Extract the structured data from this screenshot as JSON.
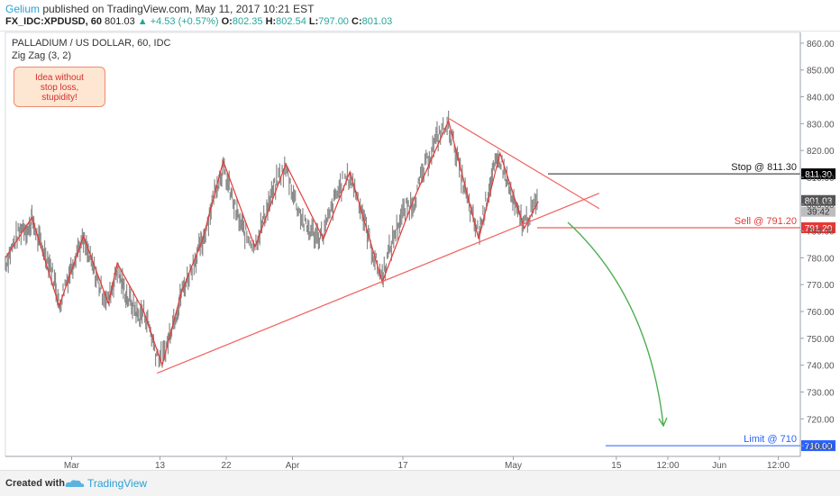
{
  "header": {
    "user": "Gelium",
    "published": "published on TradingView.com, May 11, 2017 10:21 EST",
    "symbol": "FX_IDC:XPDUSD, 60",
    "last": "801.03",
    "change": "▲ +4.53 (+0.57%)",
    "open_label": "O:",
    "open": "802.35",
    "high_label": "H:",
    "high": "802.54",
    "low_label": "L:",
    "low": "797.00",
    "close_label": "C:",
    "close": "801.03"
  },
  "legend": {
    "title": "PALLADIUM / US DOLLAR, 60, IDC",
    "indicator": "Zig Zag (3, 2)"
  },
  "note": {
    "text_line1": "Idea without",
    "text_line2": "stop loss,",
    "text_line3": "stupidity!"
  },
  "footer": {
    "created": "Created with",
    "brand": "TradingView"
  },
  "colors": {
    "zigzag": "#e53935",
    "trend": "#f06464",
    "arrow": "#4caf50",
    "limit": "#2962ff",
    "price": "#333333",
    "candle": "#888888"
  },
  "chart_data": {
    "type": "line",
    "symbol": "PALLADIUM / US DOLLAR",
    "y_ticks": [
      "860.00",
      "850.00",
      "840.00",
      "830.00",
      "820.00",
      "810.00",
      "800.00",
      "790.00",
      "780.00",
      "770.00",
      "760.00",
      "750.00",
      "740.00",
      "730.00",
      "720.00",
      "710.00"
    ],
    "ylim": [
      706,
      864
    ],
    "x_ticks": [
      {
        "label": "Mar",
        "x": 9
      },
      {
        "label": "13",
        "x": 21
      },
      {
        "label": "22",
        "x": 30
      },
      {
        "label": "Apr",
        "x": 39
      },
      {
        "label": "17",
        "x": 54
      },
      {
        "label": "May",
        "x": 69
      },
      {
        "label": "15",
        "x": 83
      },
      {
        "label": "12:00",
        "x": 90
      },
      {
        "label": "Jun",
        "x": 97
      },
      {
        "label": "12:00",
        "x": 105
      }
    ],
    "xlim": [
      0,
      108
    ],
    "zigzag": [
      {
        "x": 0,
        "y": 780
      },
      {
        "x": 3.6,
        "y": 795
      },
      {
        "x": 7.3,
        "y": 762
      },
      {
        "x": 10.6,
        "y": 788
      },
      {
        "x": 14,
        "y": 763
      },
      {
        "x": 15.2,
        "y": 778
      },
      {
        "x": 18.8,
        "y": 760
      },
      {
        "x": 21.3,
        "y": 740
      },
      {
        "x": 23.9,
        "y": 767
      },
      {
        "x": 26.8,
        "y": 787
      },
      {
        "x": 29.6,
        "y": 816
      },
      {
        "x": 33.9,
        "y": 784
      },
      {
        "x": 38.1,
        "y": 815
      },
      {
        "x": 43.2,
        "y": 787
      },
      {
        "x": 46.8,
        "y": 812
      },
      {
        "x": 51.2,
        "y": 771
      },
      {
        "x": 55.5,
        "y": 802
      },
      {
        "x": 60.2,
        "y": 831
      },
      {
        "x": 64.3,
        "y": 787
      },
      {
        "x": 67.2,
        "y": 819
      },
      {
        "x": 70.5,
        "y": 791
      },
      {
        "x": 72.4,
        "y": 801
      }
    ],
    "trend_lower": [
      {
        "x": 20.6,
        "y": 737
      },
      {
        "x": 77,
        "y": 801
      }
    ],
    "trend_upper": [
      {
        "x": 60.2,
        "y": 832
      },
      {
        "x": 77,
        "y": 803
      }
    ],
    "price_series": [
      [
        0,
        778
      ],
      [
        0.8,
        783
      ],
      [
        1.6,
        788
      ],
      [
        2.4,
        792
      ],
      [
        3.2,
        790
      ],
      [
        3.6,
        795
      ],
      [
        4.4,
        787
      ],
      [
        5.2,
        783
      ],
      [
        6,
        778
      ],
      [
        6.8,
        770
      ],
      [
        7.3,
        762
      ],
      [
        8.1,
        770
      ],
      [
        8.9,
        776
      ],
      [
        9.7,
        783
      ],
      [
        10.6,
        786
      ],
      [
        11.4,
        780
      ],
      [
        12.2,
        774
      ],
      [
        13,
        768
      ],
      [
        14,
        764
      ],
      [
        14.6,
        770
      ],
      [
        15.2,
        776
      ],
      [
        15.9,
        770
      ],
      [
        16.6,
        765
      ],
      [
        17.4,
        762
      ],
      [
        18.1,
        758
      ],
      [
        18.8,
        760
      ],
      [
        19.6,
        754
      ],
      [
        20.4,
        745
      ],
      [
        21.3,
        742
      ],
      [
        22,
        748
      ],
      [
        22.6,
        755
      ],
      [
        23.4,
        761
      ],
      [
        23.9,
        767
      ],
      [
        24.7,
        772
      ],
      [
        25.5,
        778
      ],
      [
        26.3,
        783
      ],
      [
        26.8,
        786
      ],
      [
        27.6,
        795
      ],
      [
        28.3,
        803
      ],
      [
        29,
        810
      ],
      [
        29.6,
        813
      ],
      [
        30.4,
        806
      ],
      [
        31.2,
        798
      ],
      [
        32,
        792
      ],
      [
        32.8,
        788
      ],
      [
        33.9,
        785
      ],
      [
        34.7,
        791
      ],
      [
        35.5,
        798
      ],
      [
        36.3,
        804
      ],
      [
        37.1,
        810
      ],
      [
        38.1,
        813
      ],
      [
        39,
        805
      ],
      [
        39.8,
        798
      ],
      [
        40.7,
        792
      ],
      [
        41.5,
        790
      ],
      [
        42.4,
        788
      ],
      [
        43.2,
        789
      ],
      [
        44.1,
        796
      ],
      [
        44.9,
        803
      ],
      [
        45.8,
        808
      ],
      [
        46.8,
        810
      ],
      [
        47.6,
        805
      ],
      [
        48.5,
        797
      ],
      [
        49.3,
        788
      ],
      [
        50.2,
        779
      ],
      [
        51.2,
        773
      ],
      [
        52,
        781
      ],
      [
        52.9,
        789
      ],
      [
        53.7,
        795
      ],
      [
        54.6,
        799
      ],
      [
        55.5,
        801
      ],
      [
        56.4,
        809
      ],
      [
        57.3,
        816
      ],
      [
        58.2,
        822
      ],
      [
        59.1,
        827
      ],
      [
        60.2,
        829
      ],
      [
        61,
        822
      ],
      [
        61.8,
        812
      ],
      [
        62.6,
        803
      ],
      [
        63.4,
        795
      ],
      [
        64.3,
        789
      ],
      [
        65,
        797
      ],
      [
        65.7,
        806
      ],
      [
        66.4,
        813
      ],
      [
        67.2,
        817
      ],
      [
        68,
        810
      ],
      [
        68.8,
        802
      ],
      [
        69.6,
        796
      ],
      [
        70.5,
        793
      ],
      [
        71.4,
        797
      ],
      [
        72.4,
        801
      ]
    ],
    "annotations": [
      {
        "label": "Stop @ 811.30",
        "value": 811.3,
        "badge": "811.30",
        "color": "#222222"
      },
      {
        "label": "Sell @ 791.20",
        "value": 791.2,
        "badge": "791.20",
        "color": "#e53935"
      },
      {
        "label": "Limit @ 710",
        "value": 710,
        "badge": "710.00",
        "color": "#2962ff"
      }
    ],
    "last_price": {
      "value": 801.03,
      "badge": "801.03",
      "countdown": "39:42"
    }
  }
}
